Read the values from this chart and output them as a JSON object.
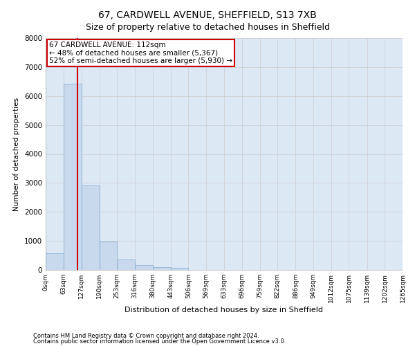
{
  "title1": "67, CARDWELL AVENUE, SHEFFIELD, S13 7XB",
  "title2": "Size of property relative to detached houses in Sheffield",
  "xlabel": "Distribution of detached houses by size in Sheffield",
  "ylabel": "Number of detached properties",
  "footer1": "Contains HM Land Registry data © Crown copyright and database right 2024.",
  "footer2": "Contains public sector information licensed under the Open Government Licence v3.0.",
  "annotation_line1": "67 CARDWELL AVENUE: 112sqm",
  "annotation_line2": "← 48% of detached houses are smaller (5,367)",
  "annotation_line3": "52% of semi-detached houses are larger (5,930) →",
  "property_size": 112,
  "bar_bins": [
    0,
    63,
    127,
    190,
    253,
    316,
    380,
    443,
    506,
    569,
    633,
    696,
    759,
    822,
    886,
    949,
    1012,
    1075,
    1139,
    1202,
    1265
  ],
  "bar_values": [
    570,
    6420,
    2920,
    980,
    360,
    165,
    105,
    75,
    0,
    0,
    0,
    0,
    0,
    0,
    0,
    0,
    0,
    0,
    0,
    0
  ],
  "bar_color": "#c8d8ed",
  "bar_edge_color": "#7aaad0",
  "vline_color": "#cc0000",
  "vline_x": 112,
  "annotation_box_color": "#cc0000",
  "ylim": [
    0,
    8000
  ],
  "yticks": [
    0,
    1000,
    2000,
    3000,
    4000,
    5000,
    6000,
    7000,
    8000
  ],
  "grid_color": "#cccccc",
  "bg_color": "#dde8f5",
  "title1_fontsize": 10,
  "title2_fontsize": 9,
  "xlabel_fontsize": 8,
  "ylabel_fontsize": 7.5,
  "tick_label_fontsize": 6.5,
  "footer_fontsize": 6,
  "annotation_fontsize": 7.5
}
